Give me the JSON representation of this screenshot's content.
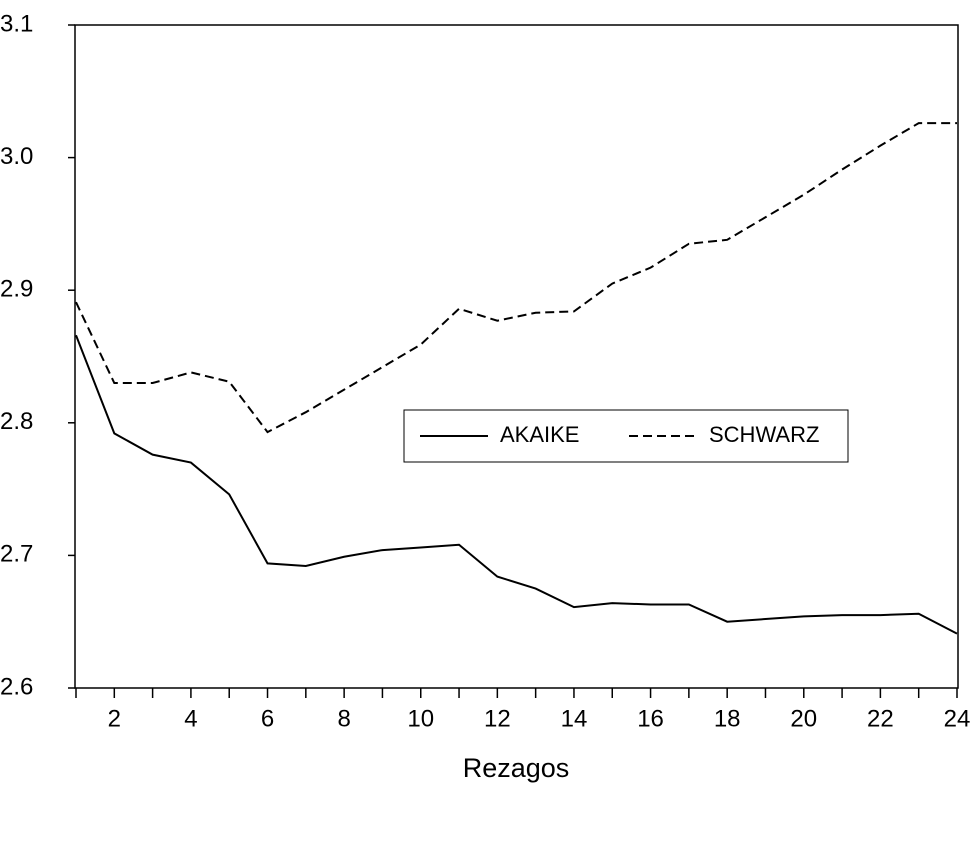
{
  "chart_data": {
    "type": "line",
    "x_label": "Rezagos",
    "x": [
      1,
      2,
      3,
      4,
      5,
      6,
      7,
      8,
      9,
      10,
      11,
      12,
      13,
      14,
      15,
      16,
      17,
      18,
      19,
      20,
      21,
      22,
      23,
      24
    ],
    "series": [
      {
        "name": "AKAIKE",
        "color": "#000000",
        "dash": "solid",
        "values": [
          2.866,
          2.792,
          2.776,
          2.77,
          2.746,
          2.694,
          2.692,
          2.699,
          2.704,
          2.706,
          2.708,
          2.684,
          2.675,
          2.661,
          2.664,
          2.663,
          2.663,
          2.65,
          2.652,
          2.654,
          2.655,
          2.655,
          2.656,
          2.641
        ]
      },
      {
        "name": "SCHWARZ",
        "color": "#000000",
        "dash": "dashed",
        "values": [
          2.891,
          2.83,
          2.83,
          2.838,
          2.831,
          2.793,
          2.808,
          2.825,
          2.842,
          2.859,
          2.886,
          2.877,
          2.883,
          2.884,
          2.905,
          2.917,
          2.935,
          2.938,
          2.955,
          2.972,
          2.991,
          3.009,
          3.026,
          3.026
        ]
      }
    ],
    "xlim": [
      1,
      24
    ],
    "xticks": [
      2,
      4,
      6,
      8,
      10,
      12,
      14,
      16,
      18,
      20,
      22,
      24
    ],
    "xminorticks": [
      1,
      3,
      5,
      7,
      9,
      11,
      13,
      15,
      17,
      19,
      21,
      23
    ],
    "ylim": [
      2.6,
      3.1
    ],
    "yticks": [
      2.6,
      2.7,
      2.8,
      2.9,
      {
        "value": 3,
        "label": "3.0"
      },
      3.1
    ],
    "legend": "center"
  }
}
